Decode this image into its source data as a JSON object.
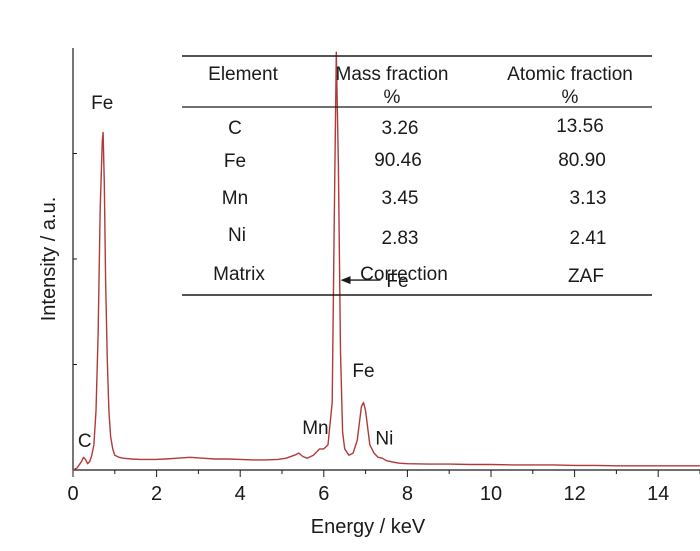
{
  "chart_data": {
    "type": "line",
    "xlabel": "Energy / keV",
    "ylabel": "Intensity / a.u.",
    "xlim": [
      0,
      15
    ],
    "x_ticks": [
      0,
      2,
      4,
      6,
      8,
      10,
      12,
      14
    ],
    "ylim": [
      0,
      100
    ],
    "grid": false,
    "line_color": "#b03a3a",
    "series": [
      {
        "x": [
          0.0,
          0.1,
          0.2,
          0.25,
          0.3,
          0.35,
          0.4,
          0.45,
          0.5,
          0.55,
          0.6,
          0.65,
          0.7,
          0.72,
          0.75,
          0.78,
          0.82,
          0.86,
          0.9,
          0.95,
          1.0,
          1.1,
          1.2,
          1.4,
          1.6,
          1.8,
          2.0,
          2.2,
          2.5,
          2.8,
          3.1,
          3.4,
          3.7,
          4.0,
          4.3,
          4.6,
          4.9,
          5.1,
          5.3,
          5.4,
          5.5,
          5.6,
          5.75,
          5.85,
          5.9,
          6.0,
          6.1,
          6.2,
          6.25,
          6.3,
          6.35,
          6.4,
          6.45,
          6.5,
          6.6,
          6.7,
          6.8,
          6.85,
          6.9,
          6.95,
          7.0,
          7.05,
          7.1,
          7.2,
          7.3,
          7.4,
          7.5,
          7.6,
          7.7,
          7.8,
          8.0,
          8.5,
          9.0,
          9.5,
          10.0,
          10.5,
          11.0,
          11.5,
          12.0,
          12.5,
          13.0,
          13.5,
          14.0,
          14.5,
          15.0
        ],
        "y": [
          0.0,
          0.5,
          2.0,
          3.0,
          2.5,
          1.5,
          2.0,
          3.5,
          6.0,
          14.0,
          32.0,
          62.0,
          78.0,
          80.0,
          68.0,
          45.0,
          26.0,
          14.0,
          8.0,
          5.0,
          3.5,
          3.0,
          2.8,
          2.6,
          2.5,
          2.5,
          2.5,
          2.6,
          2.8,
          3.0,
          2.8,
          2.6,
          2.6,
          2.5,
          2.4,
          2.4,
          2.5,
          2.8,
          3.5,
          4.0,
          3.2,
          2.8,
          3.5,
          4.5,
          5.0,
          5.0,
          6.0,
          16.0,
          60.0,
          99.0,
          72.0,
          28.0,
          9.0,
          5.0,
          3.5,
          4.0,
          7.0,
          11.0,
          15.0,
          16.0,
          14.0,
          10.0,
          6.0,
          4.0,
          3.0,
          2.8,
          2.2,
          2.0,
          1.8,
          1.6,
          1.5,
          1.4,
          1.4,
          1.3,
          1.3,
          1.2,
          1.2,
          1.2,
          1.1,
          1.1,
          1.0,
          1.0,
          1.0,
          1.0,
          1.0
        ]
      }
    ],
    "peak_labels": [
      {
        "text": "C",
        "x": 0.28,
        "y": 5.5
      },
      {
        "text": "Fe",
        "x": 0.7,
        "y": 85.5
      },
      {
        "text": "Mn",
        "x": 5.8,
        "y": 8.5
      },
      {
        "text": "Fe",
        "x": 6.95,
        "y": 22.0
      },
      {
        "text": "Ni",
        "x": 7.45,
        "y": 6.0
      }
    ],
    "arrow_annotation": {
      "text": "Fe",
      "x_from": 7.45,
      "x_to": 6.4,
      "y": 45.0
    },
    "inset_table": {
      "headers": [
        [
          "Element",
          ""
        ],
        [
          "Mass fraction",
          "%"
        ],
        [
          "Atomic fraction",
          "%"
        ]
      ],
      "rows": [
        [
          "C",
          "3.26",
          "13.56"
        ],
        [
          "Fe",
          "90.46",
          "80.90"
        ],
        [
          "Mn",
          "3.45",
          "3.13"
        ],
        [
          "Ni",
          "2.83",
          "2.41"
        ],
        [
          "Matrix",
          "Correction",
          "ZAF"
        ]
      ]
    }
  }
}
